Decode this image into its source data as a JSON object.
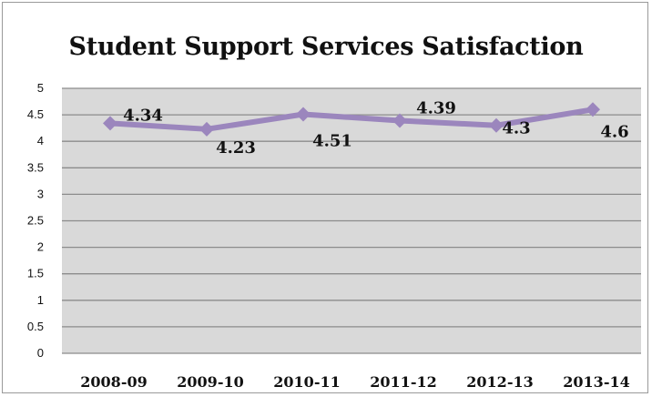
{
  "chart_data": {
    "type": "line",
    "title": "Student Support Services Satisfaction",
    "categories": [
      "2008-09",
      "2009-10",
      "2010-11",
      "2011-12",
      "2012-13",
      "2013-14"
    ],
    "series": [
      {
        "values": [
          4.34,
          4.23,
          4.51,
          4.39,
          4.3,
          4.6
        ],
        "color": "#9b86bd"
      }
    ],
    "data_labels": [
      "4.34",
      "4.23",
      "4.51",
      "4.39",
      "4.3",
      "4.6"
    ],
    "y_ticks": [
      "0",
      "0.5",
      "1",
      "1.5",
      "2",
      "2.5",
      "3",
      "3.5",
      "4",
      "4.5",
      "5"
    ],
    "ylim": [
      0,
      5
    ],
    "grid": true,
    "plot_background": "#d9d9d9",
    "gridline_color": "#8c8c8c"
  }
}
